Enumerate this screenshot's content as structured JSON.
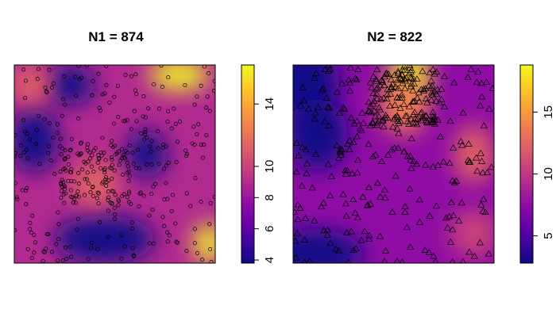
{
  "colors": {
    "palette": [
      "#0d0887",
      "#3e049c",
      "#6a00a8",
      "#8f0da4",
      "#b12a90",
      "#cc4778",
      "#e16462",
      "#f1834c",
      "#fca636",
      "#fcce25",
      "#f0f921"
    ],
    "points": "#000000",
    "background": "#ffffff"
  },
  "chart_data": [
    {
      "type": "heatmap",
      "title": "N1 = 874",
      "marker": "circle",
      "points_drawn": "874 open circle markers (individual positions not recoverable)",
      "colorbar": {
        "ticks": [
          "4",
          "6",
          "8",
          "10",
          "14"
        ],
        "tick_values": [
          4,
          6,
          8,
          10,
          14
        ],
        "range": [
          3.8,
          16.5
        ]
      },
      "features": [
        {
          "value": 4,
          "description": "left-center",
          "cx": 0.1,
          "cy": 0.38,
          "sx": 0.12,
          "sy": 0.16,
          "sign": "low"
        },
        {
          "value": 4,
          "description": "center-right",
          "cx": 0.66,
          "cy": 0.45,
          "sx": 0.1,
          "sy": 0.12,
          "sign": "low"
        },
        {
          "value": 4,
          "description": "bottom-middle",
          "cx": 0.45,
          "cy": 0.88,
          "sx": 0.25,
          "sy": 0.12,
          "sign": "low"
        },
        {
          "value": 4,
          "description": "top-center-left",
          "cx": 0.28,
          "cy": 0.1,
          "sx": 0.12,
          "sy": 0.1,
          "sign": "low"
        },
        {
          "value": 16,
          "description": "top-right",
          "cx": 0.82,
          "cy": 0.05,
          "sx": 0.15,
          "sy": 0.08,
          "sign": "high"
        },
        {
          "value": 16,
          "description": "bottom-right",
          "cx": 0.97,
          "cy": 0.9,
          "sx": 0.08,
          "sy": 0.1,
          "sign": "high"
        },
        {
          "value": 12,
          "description": "upper-left",
          "cx": 0.08,
          "cy": 0.1,
          "sx": 0.1,
          "sy": 0.1,
          "sign": "high"
        },
        {
          "value": 11,
          "description": "center",
          "cx": 0.4,
          "cy": 0.6,
          "sx": 0.12,
          "sy": 0.12,
          "sign": "high"
        }
      ]
    },
    {
      "type": "heatmap",
      "title": "N2 = 822",
      "marker": "triangle",
      "points_drawn": "822 open triangle markers (individual positions not recoverable)",
      "colorbar": {
        "ticks": [
          "5",
          "10",
          "15"
        ],
        "tick_values": [
          5,
          10,
          15
        ],
        "range": [
          2.8,
          18.8
        ]
      },
      "features": [
        {
          "value": 3,
          "description": "top-left",
          "cx": 0.05,
          "cy": 0.08,
          "sx": 0.18,
          "sy": 0.2,
          "sign": "low"
        },
        {
          "value": 3,
          "description": "left-center",
          "cx": 0.12,
          "cy": 0.35,
          "sx": 0.15,
          "sy": 0.18,
          "sign": "low"
        },
        {
          "value": 3,
          "description": "bottom-left",
          "cx": 0.1,
          "cy": 0.95,
          "sx": 0.25,
          "sy": 0.12,
          "sign": "low"
        },
        {
          "value": 18,
          "description": "top-center",
          "cx": 0.58,
          "cy": 0.05,
          "sx": 0.1,
          "sy": 0.12,
          "sign": "high"
        },
        {
          "value": 14,
          "description": "upper-center",
          "cx": 0.55,
          "cy": 0.2,
          "sx": 0.12,
          "sy": 0.15,
          "sign": "high"
        },
        {
          "value": 12,
          "description": "right-center",
          "cx": 0.9,
          "cy": 0.45,
          "sx": 0.1,
          "sy": 0.15,
          "sign": "high"
        },
        {
          "value": 10,
          "description": "bottom-right",
          "cx": 0.9,
          "cy": 0.85,
          "sx": 0.12,
          "sy": 0.12,
          "sign": "high"
        }
      ]
    }
  ]
}
